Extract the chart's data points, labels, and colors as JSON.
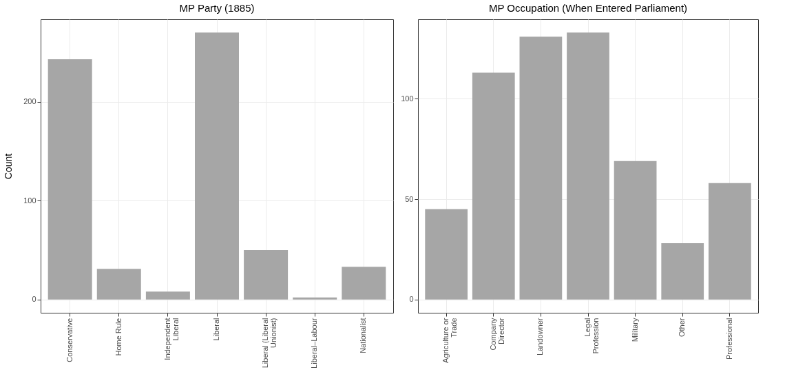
{
  "chart_data": [
    {
      "type": "bar",
      "title": "MP Party (1885)",
      "ylabel": "Count",
      "categories": [
        "Conservative",
        "Home Rule",
        "Independent Liberal",
        "Liberal",
        "Liberal (Liberal Unionist)",
        "Liberal–Labour",
        "Nationalist"
      ],
      "values": [
        243,
        31,
        8,
        270,
        50,
        2,
        33
      ],
      "color": "#a6a6a6",
      "ylim": [
        -13.5,
        283.5
      ],
      "yticks": [
        0,
        100,
        200
      ],
      "grid": true
    },
    {
      "type": "bar",
      "title": "MP Occupation (When Entered Parliament)",
      "categories": [
        "Agriculture or Trade",
        "Company Director",
        "Landowner",
        "Legal Profession",
        "Military",
        "Other",
        "Professional"
      ],
      "values": [
        45,
        113,
        131,
        133,
        69,
        28,
        58
      ],
      "color": "#a6a6a6",
      "ylim": [
        -6.65,
        139.65
      ],
      "yticks": [
        0,
        50,
        100
      ],
      "grid": true
    }
  ]
}
